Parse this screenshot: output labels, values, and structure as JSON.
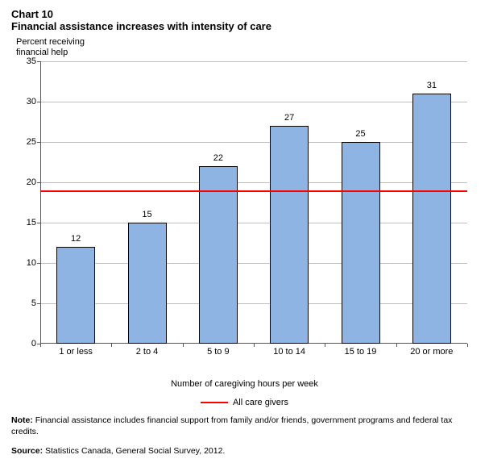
{
  "header": {
    "chart_number": "Chart 10",
    "title": "Financial assistance increases with intensity of care"
  },
  "chart": {
    "type": "bar",
    "y_axis_label_line1": "Percent receiving",
    "y_axis_label_line2": "financial help",
    "x_axis_label": "Number of caregiving hours per week",
    "ylim": [
      0,
      35
    ],
    "ytick_step": 5,
    "yticks": [
      0,
      5,
      10,
      15,
      20,
      25,
      30,
      35
    ],
    "categories": [
      "1 or less",
      "2 to 4",
      "5 to 9",
      "10 to 14",
      "15 to 19",
      "20 or more"
    ],
    "values": [
      12,
      15,
      22,
      27,
      25,
      31
    ],
    "bar_color": "#8eb4e3",
    "bar_border_color": "#000000",
    "grid_color": "#bfbfbf",
    "axis_color": "#555555",
    "reference_line_value": 19,
    "reference_line_color": "#ff0000",
    "reference_line_label": "All care givers",
    "background_color": "#ffffff",
    "bar_label_fontsize": 11,
    "axis_label_fontsize": 11,
    "tick_fontsize": 11
  },
  "footer": {
    "note_label": "Note:",
    "note_text": " Financial assistance includes financial support from family and/or friends, government programs and federal tax credits.",
    "source_label": "Source:",
    "source_text": " Statistics Canada, General Social Survey, 2012."
  }
}
